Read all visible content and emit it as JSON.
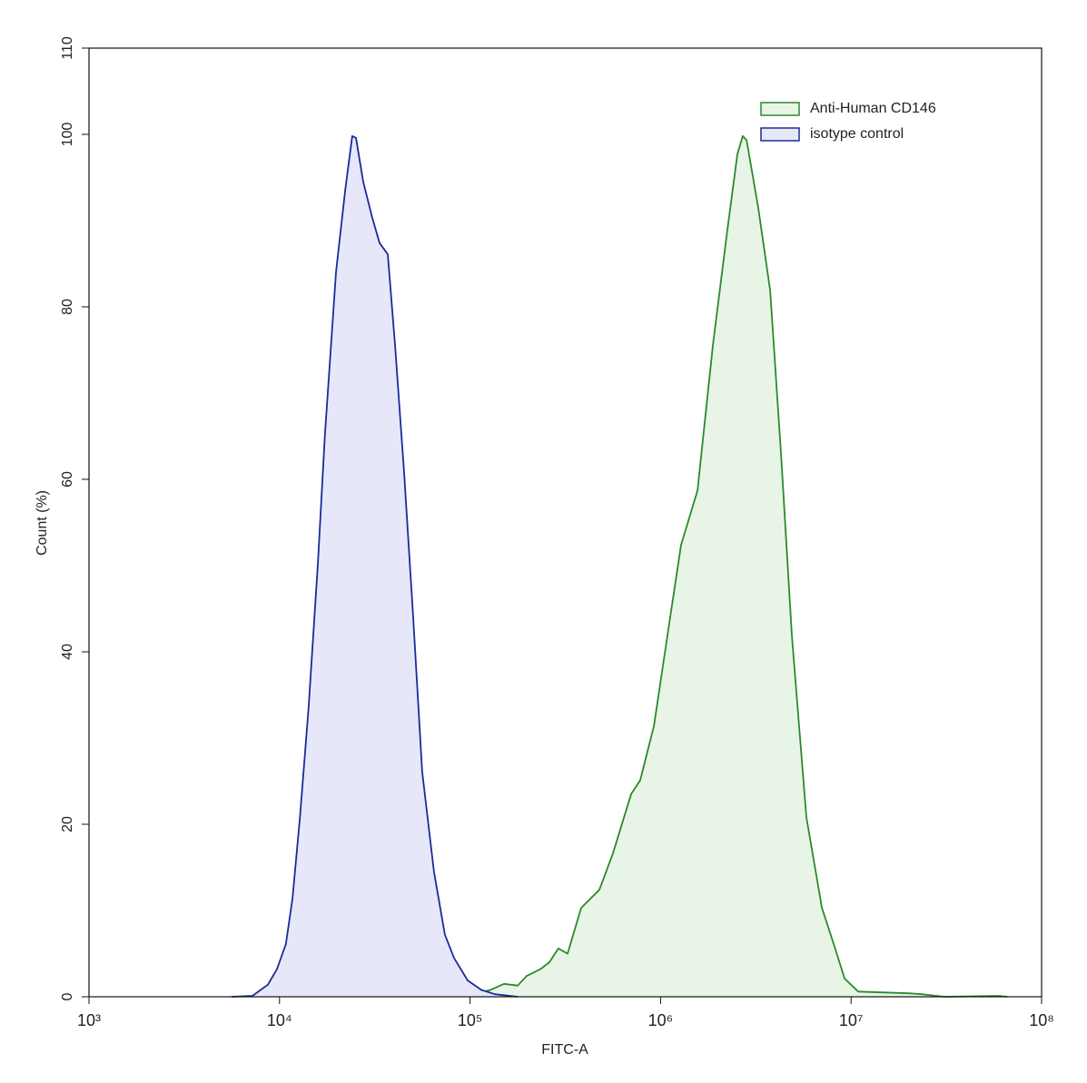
{
  "chart_data": {
    "type": "area",
    "xlabel": "FITC-A",
    "ylabel": "Count (%)",
    "xscale": "log",
    "xlim": [
      1000,
      100000000
    ],
    "xticks": [
      {
        "value": 1000,
        "label": "10³"
      },
      {
        "value": 10000,
        "label": "10⁴"
      },
      {
        "value": 100000,
        "label": "10⁵"
      },
      {
        "value": 1000000,
        "label": "10⁶"
      },
      {
        "value": 10000000,
        "label": "10⁷"
      },
      {
        "value": 100000000,
        "label": "10⁸"
      }
    ],
    "ylim": [
      0,
      110
    ],
    "yticks": [
      0,
      20,
      40,
      60,
      80,
      100,
      110
    ],
    "legend": "top-right",
    "series": [
      {
        "name": "Anti-Human CD146",
        "color": "#2a8a2a",
        "fill": "#e8f5e6",
        "x": [
          59300,
          102600,
          128000,
          151000,
          178000,
          198000,
          234000,
          261000,
          291000,
          325000,
          383000,
          477000,
          562000,
          701000,
          782000,
          923000,
          1087000,
          1282000,
          1563000,
          1883000,
          2220000,
          2530000,
          2700000,
          2830000,
          3260000,
          3760000,
          4290000,
          4890000,
          5830000,
          7030000,
          8110000,
          9250000,
          10900000,
          20000000,
          23500000,
          30900000,
          59600000,
          66000000
        ],
        "values": [
          0.1,
          0.2,
          0.8,
          1.5,
          1.3,
          2.4,
          3.2,
          4,
          5.6,
          5,
          10.3,
          12.4,
          16.6,
          23.5,
          25.1,
          31.4,
          41.9,
          52.4,
          58.7,
          75.6,
          88.2,
          97.7,
          99.8,
          99.3,
          91.4,
          81.9,
          62.9,
          41.9,
          20.8,
          10.3,
          6.1,
          2.1,
          0.6,
          0.4,
          0.3,
          0,
          0.1,
          0
        ]
      },
      {
        "name": "isotype control",
        "color": "#1a2a9a",
        "fill": "#e6e8fa",
        "x": [
          5600,
          7210,
          8690,
          9700,
          10800,
          11700,
          12800,
          14200,
          15900,
          17300,
          19800,
          22100,
          24100,
          25200,
          27500,
          30700,
          33500,
          37000,
          40400,
          45100,
          50300,
          56100,
          64700,
          73800,
          82400,
          97200,
          114500,
          135000,
          178000
        ],
        "values": [
          0,
          0.1,
          1.4,
          3.2,
          6.1,
          11.4,
          20.8,
          33.5,
          50.3,
          65,
          84,
          93.5,
          99.8,
          99.6,
          94.5,
          90.3,
          87.4,
          86.1,
          75.6,
          60.8,
          44,
          26.1,
          14.5,
          7.2,
          4.5,
          1.9,
          0.8,
          0.3,
          0
        ]
      }
    ]
  }
}
